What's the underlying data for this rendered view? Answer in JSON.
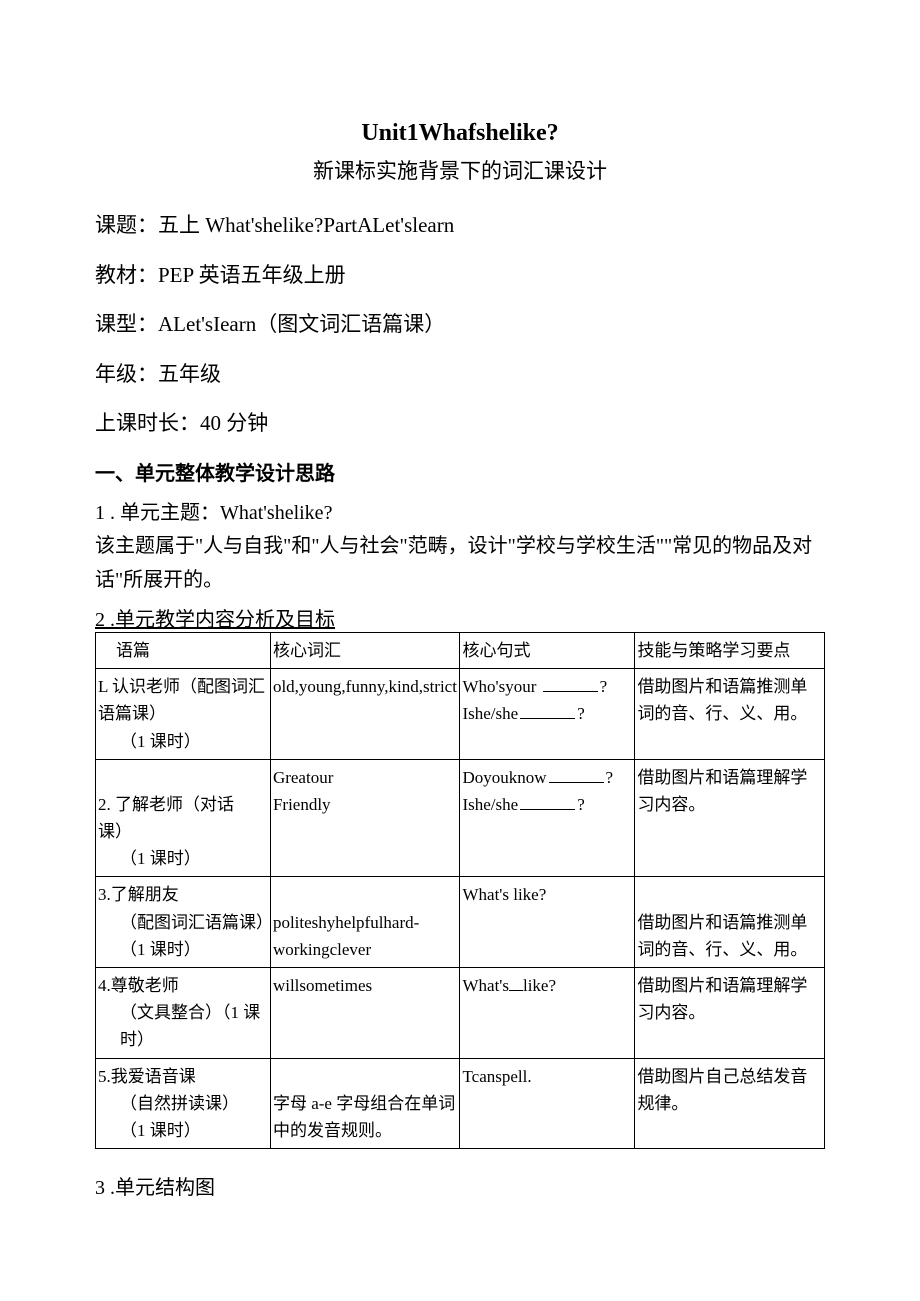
{
  "title": "Unit1Whafshelike?",
  "subtitle": "新课标实施背景下的词汇课设计",
  "meta": {
    "topic_label": "课题：",
    "topic_value": "五上 What'shelike?PartALet'slearn",
    "textbook_label": "教材：",
    "textbook_value": "PEP 英语五年级上册",
    "type_label": "课型：",
    "type_value": "ALet'sIearn（图文词汇语篇课）",
    "grade_label": "年级：",
    "grade_value": "五年级",
    "duration_label": "上课时长：",
    "duration_value": "40 分钟"
  },
  "section1_head": "一、单元整体教学设计思路",
  "item1_num": "1 . 单元主题：What'shelike?",
  "item1_para": "该主题属于\"人与自我\"和\"人与社会\"范畴，设计\"学校与学校生活\"\"常见的物品及对话\"所展开的。",
  "item2_head": "2 .单元教学内容分析及目标",
  "table": {
    "header": [
      "语篇",
      "核心词汇",
      "核心句式",
      "技能与策略学习要点"
    ],
    "rows": [
      {
        "c1a": "L 认识老师（配图词汇",
        "c1b": "语篇课）",
        "c1c": "（1 课时）",
        "c2": "old,young,funny,kind,strict",
        "c3a": "Who'syour",
        "c3b": "Ishe/she",
        "c4": "借助图片和语篇推测单词的音、行、义、用。"
      },
      {
        "c1a": "2. 了解老师（对话课）",
        "c1c": "（1 课时）",
        "c2": "Greatour\nFriendly",
        "c3a": "Doyouknow",
        "c3b": "Ishe/she",
        "c4": "借助图片和语篇理解学习内容。"
      },
      {
        "c1a": "3.了解朋友",
        "c1b": "（配图词汇语篇课）",
        "c1c": "（1 课时）",
        "c2": "politeshyhelpfulhard-workingclever",
        "c3": "What's          like?",
        "c4": "借助图片和语篇推测单词的音、行、义、用。"
      },
      {
        "c1a": "4.尊敬老师",
        "c1b": "（文具整合）（1 课",
        "c1c": "时）",
        "c2": "willsometimes",
        "c3": "What's  like?",
        "c4": "借助图片和语篇理解学习内容。"
      },
      {
        "c1a": "5.我爱语音课",
        "c1b": "（自然拼读课）",
        "c1c": "（1 课时）",
        "c2": "字母 a-e 字母组合在单词中的发音规则。",
        "c3": "Tcanspell.",
        "c4": "借助图片自己总结发音规律。"
      }
    ]
  },
  "item3": "3 .单元结构图"
}
